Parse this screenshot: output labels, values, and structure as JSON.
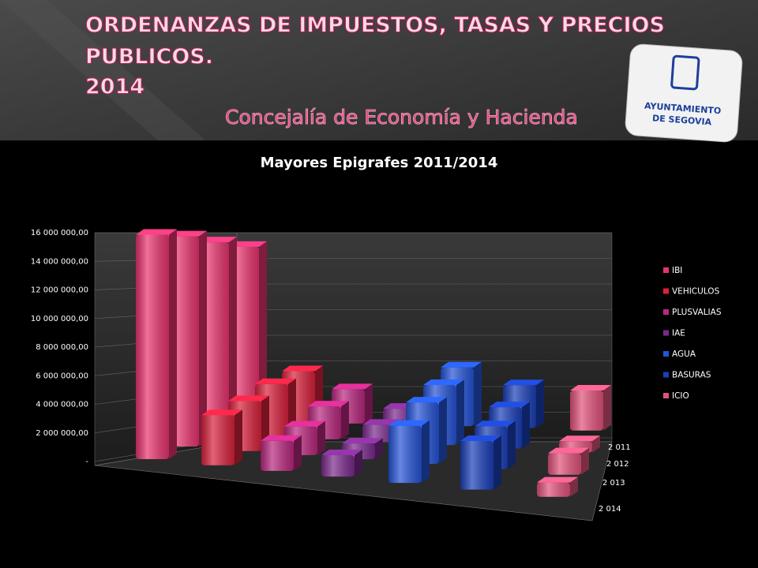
{
  "header": {
    "title_lines": [
      "ORDENANZAS DE IMPUESTOS, TASAS Y PRECIOS",
      "PUBLICOS.",
      "2014"
    ],
    "subtitle": "Concejalía de Economía y Hacienda",
    "logo_lines": [
      "AYUNTAMIENTO",
      "DE SEGOVIA"
    ]
  },
  "chart_data": {
    "type": "bar",
    "title": "Mayores Epigrafes 2011/2014",
    "categories": [
      "2 011",
      "2 012",
      "2 013",
      "2 014"
    ],
    "series": [
      {
        "name": "IBI",
        "color": "#e8336e",
        "values": [
          12200000,
          13400000,
          14700000,
          15700000
        ]
      },
      {
        "name": "VEHICULOS",
        "color": "#d8213c",
        "values": [
          3600000,
          3700000,
          3500000,
          3500000
        ]
      },
      {
        "name": "PLUSVALIAS",
        "color": "#b8277e",
        "values": [
          2400000,
          2300000,
          2000000,
          2100000
        ]
      },
      {
        "name": "IAE",
        "color": "#7a2a8c",
        "values": [
          1100000,
          1200000,
          1100000,
          1500000
        ]
      },
      {
        "name": "AGUA",
        "color": "#2553d6",
        "values": [
          4100000,
          4200000,
          4300000,
          4000000
        ]
      },
      {
        "name": "BASURAS",
        "color": "#1a3fb8",
        "values": [
          3000000,
          2900000,
          3000000,
          3400000
        ]
      },
      {
        "name": "ICIO",
        "color": "#e0527a",
        "values": [
          2800000,
          800000,
          1500000,
          1000000
        ]
      }
    ],
    "ylim": [
      0,
      16000000
    ],
    "yticks": [
      {
        "value": 0,
        "label": "-"
      },
      {
        "value": 2000000,
        "label": "2 000 000,00"
      },
      {
        "value": 4000000,
        "label": "4 000 000,00"
      },
      {
        "value": 6000000,
        "label": "6 000 000,00"
      },
      {
        "value": 8000000,
        "label": "8 000 000,00"
      },
      {
        "value": 10000000,
        "label": "10 000 000,00"
      },
      {
        "value": 12000000,
        "label": "12 000 000,00"
      },
      {
        "value": 14000000,
        "label": "14 000 000,00"
      },
      {
        "value": 16000000,
        "label": "16 000 000,00"
      }
    ],
    "grid": true,
    "legend": "right"
  }
}
